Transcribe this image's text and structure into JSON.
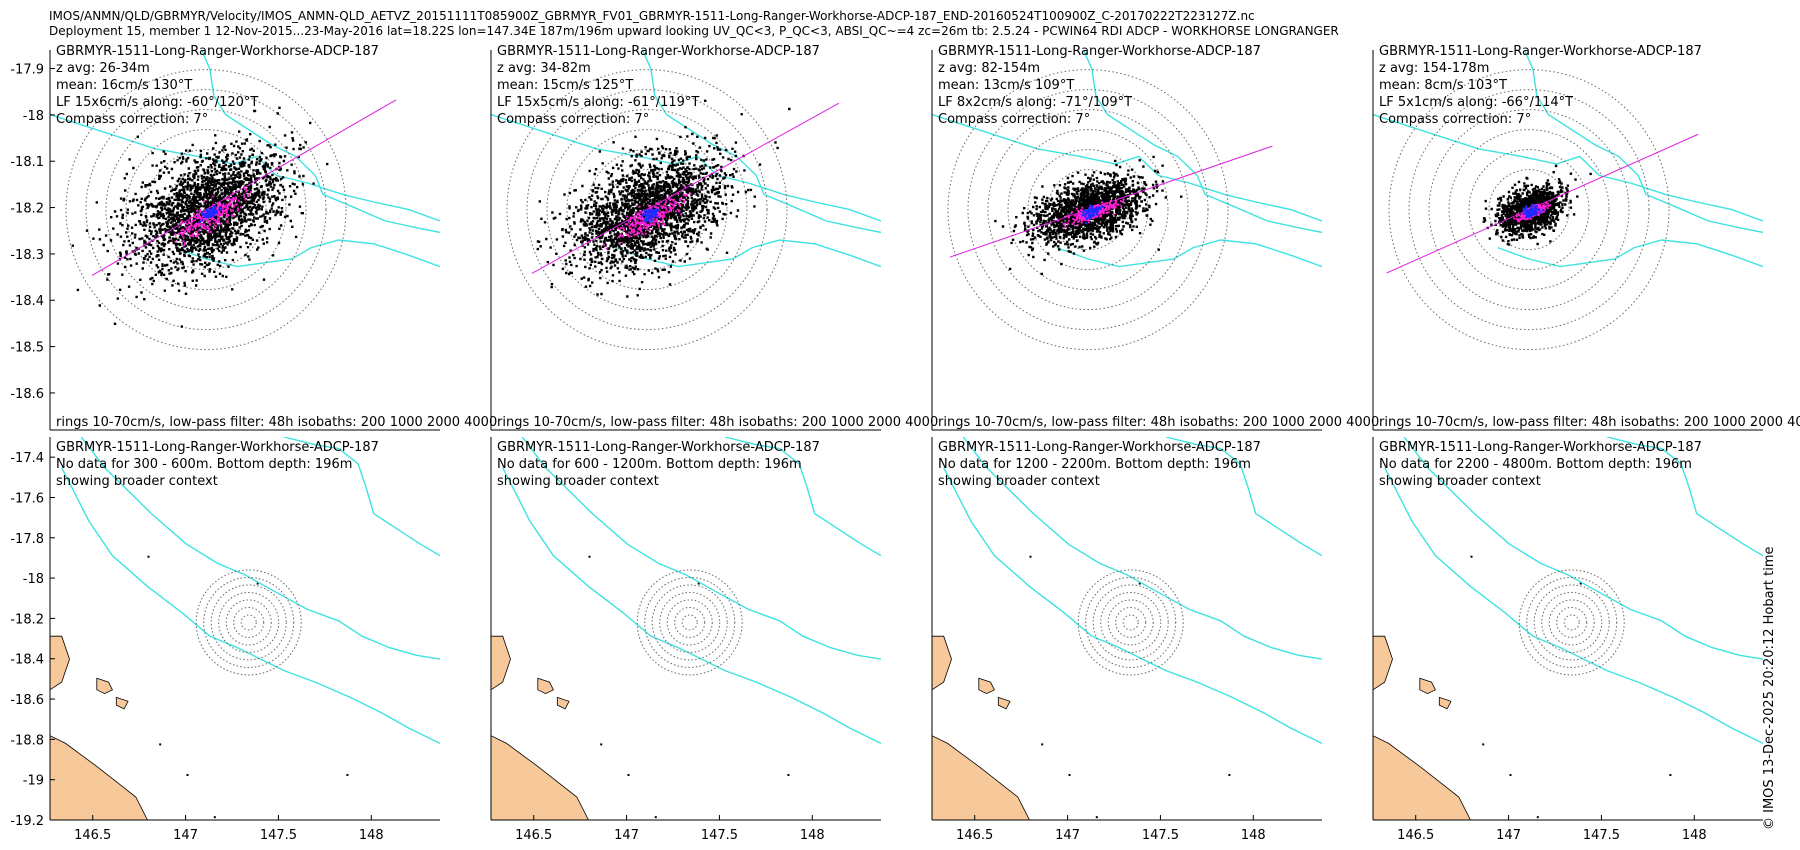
{
  "header": {
    "line1": "IMOS/ANMN/QLD/GBRMYR/Velocity/IMOS_ANMN-QLD_AETVZ_20151111T085900Z_GBRMYR_FV01_GBRMYR-1511-Long-Ranger-Workhorse-ADCP-187_END-20160524T100900Z_C-20170222T223127Z.nc",
    "line2": "Deployment 15, member 1 12-Nov-2015...23-May-2016 lat=18.22S lon=147.34E 187m/196m upward looking UV_QC<3, P_QC<3, ABSI_QC~=4 zc=26m tb: 2.5.24 - PCWIN64 RDI ADCP - WORKHORSE LONGRANGER"
  },
  "credit": "© IMOS 13-Dec-2025 20:20:12 Hobart time",
  "colors": {
    "isobath": "#3ee2e2",
    "land": "#f7c99a",
    "scatter": "#000000",
    "lowpass": "#ff1fd6",
    "mean": "#1e2bff",
    "principal_axis": "#e020e0",
    "rings": "#666666"
  },
  "chart_data": [
    {
      "type": "scatter",
      "title": "GBRMYR-1511-Long-Ranger-Workhorse-ADCP-187",
      "lines": [
        "z avg: 26-34m",
        "mean: 16cm/s 130°T",
        "LF 15x6cm/s along: -60°/120°T",
        "Compass correction: 7°"
      ],
      "footer": "rings 10-70cm/s, low-pass filter: 48h isobaths: 200 1000 2000 4000",
      "ylim": [
        -18.68,
        -17.86
      ],
      "yticks": [
        -17.9,
        -18,
        -18.1,
        -18.2,
        -18.3,
        -18.4,
        -18.5,
        -18.6
      ],
      "center": [
        147.34,
        -18.22
      ],
      "spread": [
        6.4,
        3.9
      ],
      "point_count": 2300,
      "principal_angle_deg": -30,
      "mean_offset": [
        0.1,
        0.15
      ],
      "axis_extent": [
        -0.27,
        0.45
      ]
    },
    {
      "type": "scatter",
      "title": "GBRMYR-1511-Long-Ranger-Workhorse-ADCP-187",
      "lines": [
        "z avg: 34-82m",
        "mean: 15cm/s 125°T",
        "LF 15x5cm/s along: -61°/119°T",
        "Compass correction: 7°"
      ],
      "footer": "rings 10-70cm/s, low-pass filter: 48h isobaths: 200 1000 2000 4000",
      "ylim": [
        -18.68,
        -17.86
      ],
      "yticks": [],
      "center": [
        147.34,
        -18.22
      ],
      "spread": [
        6.4,
        3.6
      ],
      "point_count": 2300,
      "principal_angle_deg": -29,
      "mean_offset": [
        0.1,
        0.15
      ],
      "axis_extent": [
        -0.27,
        0.45
      ]
    },
    {
      "type": "scatter",
      "title": "GBRMYR-1511-Long-Ranger-Workhorse-ADCP-187",
      "lines": [
        "z avg: 82-154m",
        "mean: 13cm/s 109°T",
        "LF 8x2cm/s along: -71°/109°T",
        "Compass correction: 7°"
      ],
      "footer": "rings 10-70cm/s, low-pass filter: 48h isobaths: 200 1000 2000 4000",
      "ylim": [
        -18.68,
        -17.86
      ],
      "yticks": [],
      "center": [
        147.34,
        -18.22
      ],
      "spread": [
        4.4,
        2.2
      ],
      "point_count": 1800,
      "principal_angle_deg": -19,
      "mean_offset": [
        0.08,
        0.06
      ],
      "axis_extent": [
        -0.3,
        0.4
      ]
    },
    {
      "type": "scatter",
      "title": "GBRMYR-1511-Long-Ranger-Workhorse-ADCP-187",
      "lines": [
        "z avg: 154-178m",
        "mean: 8cm/s 103°T",
        "LF 5x1cm/s along: -66°/114°T",
        "Compass correction: 7°"
      ],
      "footer": "rings 10-70cm/s, low-pass filter: 48h isobaths: 200 1000 2000 4000",
      "ylim": [
        -18.68,
        -17.86
      ],
      "yticks": [],
      "center": [
        147.34,
        -18.22
      ],
      "spread": [
        2.6,
        1.6
      ],
      "point_count": 1300,
      "principal_angle_deg": -24,
      "mean_offset": [
        0.05,
        0.04
      ],
      "axis_extent": [
        -0.32,
        0.38
      ]
    },
    {
      "type": "map",
      "title": "GBRMYR-1511-Long-Ranger-Workhorse-ADCP-187",
      "lines": [
        "No data for 300 - 600m. Bottom depth: 196m",
        "showing broader context"
      ],
      "xlim": [
        146.27,
        148.37
      ],
      "ylim": [
        -19.2,
        -17.3
      ],
      "xticks": [
        146.5,
        147,
        147.5,
        148
      ],
      "xticklabels": [
        "146.5",
        "147",
        "147.5",
        "148"
      ],
      "yticks": [
        -17.4,
        -17.6,
        -17.8,
        -18,
        -18.2,
        -18.4,
        -18.6,
        -18.8,
        -19,
        -19.2
      ],
      "yticklabels": [
        "-17.4",
        "-17.6",
        "-17.8",
        "-18",
        "-18.2",
        "-18.4",
        "-18.6",
        "-18.8",
        "-19",
        "-19.2"
      ]
    },
    {
      "type": "map",
      "title": "GBRMYR-1511-Long-Ranger-Workhorse-ADCP-187",
      "lines": [
        "No data for 600 - 1200m. Bottom depth: 196m",
        "showing broader context"
      ],
      "xlim": [
        146.27,
        148.37
      ],
      "ylim": [
        -19.2,
        -17.3
      ],
      "xticks": [
        146.5,
        147,
        147.5,
        148
      ],
      "xticklabels": [
        "146.5",
        "147",
        "147.5",
        "148"
      ],
      "yticks": [],
      "yticklabels": []
    },
    {
      "type": "map",
      "title": "GBRMYR-1511-Long-Ranger-Workhorse-ADCP-187",
      "lines": [
        "No data for 1200 - 2200m. Bottom depth: 196m",
        "showing broader context"
      ],
      "xlim": [
        146.27,
        148.37
      ],
      "ylim": [
        -19.2,
        -17.3
      ],
      "xticks": [
        146.5,
        147,
        147.5,
        148
      ],
      "xticklabels": [
        "146.5",
        "147",
        "147.5",
        "148"
      ],
      "yticks": [],
      "yticklabels": []
    },
    {
      "type": "map",
      "title": "GBRMYR-1511-Long-Ranger-Workhorse-ADCP-187",
      "lines": [
        "No data for 2200 - 4800m. Bottom depth: 196m",
        "showing broader context"
      ],
      "xlim": [
        146.27,
        148.37
      ],
      "ylim": [
        -19.2,
        -17.3
      ],
      "xticks": [
        146.5,
        147,
        147.5,
        148
      ],
      "xticklabels": [
        "146.5",
        "147",
        "147.5",
        "148"
      ],
      "yticks": [],
      "yticklabels": []
    }
  ]
}
